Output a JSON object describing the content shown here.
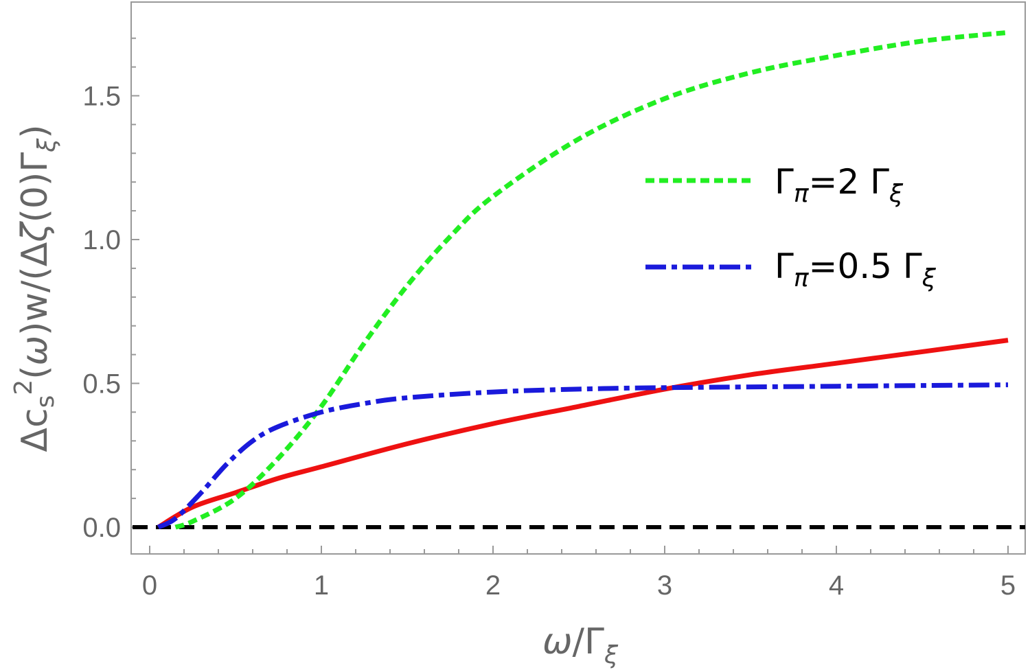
{
  "chart_data": {
    "type": "line",
    "xlabel": "ω/Γξ",
    "ylabel": "Δcs²(ω)w/(Δζ(0)Γξ)",
    "xlim": [
      0,
      5
    ],
    "ylim": [
      -0.09,
      1.82
    ],
    "x_ticks": [
      "0",
      "1",
      "2",
      "3",
      "4",
      "5"
    ],
    "y_ticks": [
      "0.0",
      "0.5",
      "1.0",
      "1.5"
    ],
    "grid": false,
    "legend_position": "center-right",
    "legend": [
      {
        "parts": [
          "Γ",
          "π",
          "=2 Γ",
          "ξ"
        ],
        "color": "#22ee22",
        "dash": "dotted"
      },
      {
        "parts": [
          "Γ",
          "π",
          "=0.5 Γ",
          "ξ"
        ],
        "color": "#1a1adb",
        "dash": "dashdot"
      }
    ],
    "series": [
      {
        "color": "#ee1111",
        "style": "solid",
        "x": [
          0.05,
          0.25,
          0.5,
          0.75,
          1.0,
          1.5,
          2.0,
          2.5,
          3.0,
          3.5,
          4.0,
          4.5,
          5.0
        ],
        "y": [
          0.0,
          0.07,
          0.12,
          0.17,
          0.21,
          0.29,
          0.36,
          0.42,
          0.48,
          0.53,
          0.57,
          0.61,
          0.65
        ]
      },
      {
        "name": "Γπ=2 Γξ",
        "color": "#22ee22",
        "style": "dotted",
        "x": [
          0.15,
          0.25,
          0.5,
          0.75,
          1.0,
          1.25,
          1.5,
          1.75,
          2.0,
          2.5,
          3.0,
          3.5,
          4.0,
          4.5,
          5.0
        ],
        "y": [
          0.0,
          0.02,
          0.1,
          0.24,
          0.42,
          0.64,
          0.84,
          1.01,
          1.15,
          1.35,
          1.49,
          1.58,
          1.64,
          1.69,
          1.72
        ]
      },
      {
        "name": "Γπ=0.5 Γξ",
        "color": "#1a1adb",
        "style": "dashdot",
        "x": [
          0.05,
          0.15,
          0.3,
          0.45,
          0.6,
          0.75,
          1.0,
          1.25,
          1.5,
          2.0,
          2.5,
          3.0,
          4.0,
          5.0
        ],
        "y": [
          0.0,
          0.03,
          0.12,
          0.22,
          0.3,
          0.35,
          0.4,
          0.43,
          0.45,
          0.47,
          0.48,
          0.485,
          0.49,
          0.495
        ]
      },
      {
        "color": "#000000",
        "style": "dashed",
        "x": [
          -0.1,
          5.1
        ],
        "y": [
          0.0,
          0.0
        ]
      }
    ]
  }
}
